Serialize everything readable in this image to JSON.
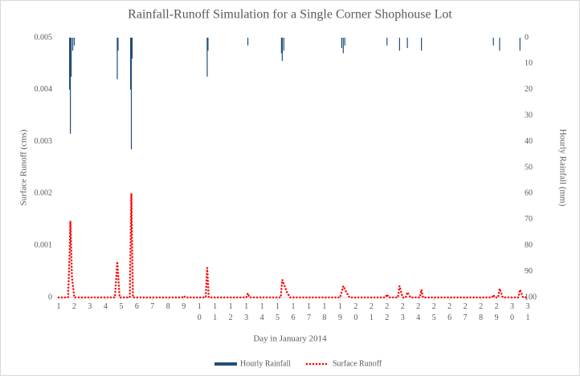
{
  "chart_data": {
    "type": "line",
    "title": "Rainfall-Runoff Simulation for a Single Corner Shophouse Lot",
    "xlabel": "Day in January 2014",
    "ylabel": "Surface Runoff (cms)",
    "y2label": "Hourly Rainfall (mm)",
    "xlim": [
      1,
      31
    ],
    "xticks": [
      1,
      2,
      3,
      4,
      5,
      6,
      7,
      8,
      9,
      10,
      11,
      12,
      13,
      14,
      15,
      16,
      17,
      18,
      19,
      20,
      21,
      22,
      23,
      24,
      25,
      26,
      27,
      28,
      29,
      30,
      31
    ],
    "ylim": [
      0,
      0.005
    ],
    "yticks": [
      0,
      0.001,
      0.002,
      0.003,
      0.004,
      0.005
    ],
    "y2lim": [
      100,
      0
    ],
    "y2ticks": [
      0,
      10,
      20,
      30,
      40,
      50,
      60,
      70,
      80,
      90,
      100
    ],
    "legend": "bottom",
    "series": [
      {
        "name": "Hourly Rainfall",
        "color": "#1f4e79",
        "axis": "y2",
        "style": "bar",
        "x": [
          1.7,
          1.75,
          1.8,
          1.9,
          2,
          4.75,
          4.8,
          5.6,
          5.65,
          5.7,
          10.5,
          10.55,
          13.1,
          15.25,
          15.3,
          15.4,
          19.1,
          19.2,
          19.3,
          22,
          22.8,
          23.3,
          24.2,
          28.8,
          29.2,
          30.5
        ],
        "values": [
          20,
          37,
          15,
          5,
          3,
          16,
          5,
          20,
          43,
          8,
          15,
          5,
          3,
          6,
          9,
          5,
          4,
          6,
          3,
          3,
          5,
          4,
          5,
          3,
          5,
          5
        ]
      },
      {
        "name": "Surface Runoff",
        "color": "#ff0000",
        "style": "dotted",
        "x": [
          1,
          1.6,
          1.7,
          1.75,
          1.85,
          2,
          4.6,
          4.75,
          4.9,
          5.55,
          5.65,
          5.75,
          8.9,
          9,
          9.1,
          10.4,
          10.5,
          10.6,
          13,
          13.1,
          13.2,
          15.2,
          15.3,
          15.6,
          15.8,
          19,
          19.2,
          19.4,
          19.6,
          21.9,
          22,
          22.1,
          22.7,
          22.8,
          23,
          23.2,
          23.3,
          23.5,
          24.1,
          24.2,
          24.3,
          28.7,
          28.8,
          28.9,
          29.1,
          29.2,
          29.4,
          30.4,
          30.5,
          30.7,
          31
        ],
        "values": [
          0,
          0,
          0.0008,
          0.00147,
          0.0004,
          0,
          0,
          0.00069,
          0,
          0,
          0.002,
          0,
          0,
          3e-05,
          0,
          0,
          0.00057,
          0,
          0,
          8e-05,
          0,
          0,
          0.00034,
          0.0001,
          0,
          0,
          0.00022,
          0.0001,
          0,
          0,
          6e-05,
          0,
          0,
          0.00022,
          0,
          0,
          0.0001,
          0,
          0,
          0.00015,
          0,
          0,
          5e-05,
          0,
          0,
          0.00017,
          0,
          0,
          0.00015,
          0,
          0
        ]
      }
    ]
  }
}
